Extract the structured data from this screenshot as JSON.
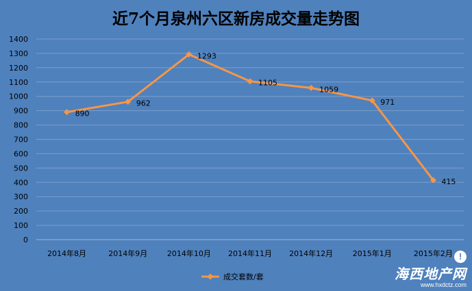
{
  "chart_data": {
    "type": "line",
    "title": "近7个月泉州六区新房成交量走势图",
    "categories": [
      "2014年8月",
      "2014年9月",
      "2014年10月",
      "2014年11月",
      "2014年12月",
      "2015年1月",
      "2015年2月"
    ],
    "series": [
      {
        "name": "成交套数/套",
        "values": [
          890,
          962,
          1293,
          1105,
          1059,
          971,
          415
        ],
        "color": "#f79646"
      }
    ],
    "ylim": [
      0,
      1400
    ],
    "yticks": [
      0,
      100,
      200,
      300,
      400,
      500,
      600,
      700,
      800,
      900,
      1000,
      1100,
      1200,
      1300,
      1400
    ],
    "grid": true,
    "legend": "bottom"
  },
  "watermark": {
    "brand": "海西地产网",
    "url": "www.hxdctz.com",
    "icon": "speech-bubble-icon"
  },
  "colors": {
    "background": "#4f81bd",
    "gridline": "#7da0cc",
    "line": "#f79646"
  }
}
